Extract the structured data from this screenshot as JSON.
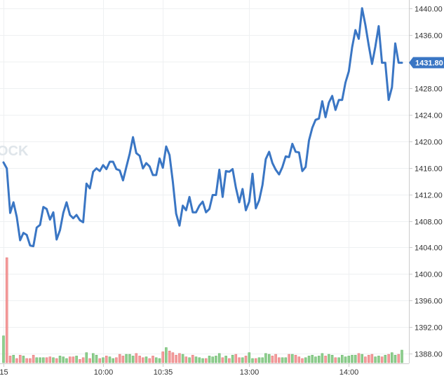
{
  "chart_data": {
    "type": "line",
    "watermark": "OCK",
    "last_price_label": "1431.80",
    "y_ticks": [
      "1440.00",
      "1436.00",
      "1432.00",
      "1428.00",
      "1424.00",
      "1420.00",
      "1416.00",
      "1412.00",
      "1408.00",
      "1404.00",
      "1400.00",
      "1396.00",
      "1392.00",
      "1388.00"
    ],
    "ylim": [
      1387.2,
      1440.6
    ],
    "x_ticks": [
      {
        "label": "15",
        "index": 0
      },
      {
        "label": "10:00",
        "index": 30
      },
      {
        "label": "10:35",
        "index": 48
      },
      {
        "label": "13:00",
        "index": 74
      },
      {
        "label": "14:00",
        "index": 104
      }
    ],
    "grid": true,
    "colors": {
      "price_line": "#3a76c4",
      "volume_up": "#8fce8f",
      "volume_down": "#f49c9c",
      "grid": "#eef0f2",
      "axis": "#cccccc",
      "price_tag": "#3a76c4"
    },
    "series": [
      {
        "values": [
          1416.8,
          1415.9,
          1409.2,
          1410.8,
          1408.6,
          1405.1,
          1406.2,
          1405.9,
          1404.3,
          1404.2,
          1407.0,
          1407.4,
          1410.1,
          1409.8,
          1408.2,
          1409.3,
          1405.2,
          1406.6,
          1409.2,
          1410.8,
          1408.9,
          1408.4,
          1408.9,
          1408.1,
          1407.8,
          1413.6,
          1412.9,
          1415.4,
          1415.9,
          1415.5,
          1416.4,
          1415.8,
          1416.9,
          1416.9,
          1415.8,
          1415.6,
          1414.1,
          1416.1,
          1418.1,
          1420.6,
          1418.2,
          1417.8,
          1415.9,
          1416.7,
          1416.2,
          1414.9,
          1414.9,
          1417.4,
          1416.0,
          1419.2,
          1417.9,
          1413.9,
          1409.1,
          1407.3,
          1410.3,
          1409.6,
          1411.6,
          1409.3,
          1409.3,
          1410.3,
          1410.9,
          1409.3,
          1409.8,
          1411.9,
          1411.9,
          1415.7,
          1411.6,
          1415.5,
          1415.4,
          1415.8,
          1413.0,
          1410.8,
          1412.8,
          1409.6,
          1410.9,
          1415.1,
          1409.9,
          1411.1,
          1413.4,
          1417.3,
          1418.4,
          1416.7,
          1415.7,
          1415.0,
          1416.1,
          1417.7,
          1417.6,
          1419.6,
          1418.4,
          1418.3,
          1415.5,
          1416.1,
          1420.1,
          1422.0,
          1423.2,
          1423.4,
          1426.0,
          1423.6,
          1425.8,
          1426.8,
          1424.7,
          1426.2,
          1426.2,
          1428.8,
          1430.5,
          1434.1,
          1436.7,
          1435.4,
          1440.0,
          1437.5,
          1434.4,
          1431.6,
          1434.2,
          1437.3,
          1431.8,
          1431.8,
          1426.2,
          1428.1,
          1434.7,
          1431.8,
          1431.8
        ],
        "volumes": [
          3.2,
          12.5,
          0.8,
          0.9,
          0.5,
          0.9,
          0.8,
          0.5,
          0.5,
          0.9,
          0.6,
          0.6,
          0.6,
          0.6,
          0.7,
          0.6,
          0.5,
          0.8,
          0.7,
          0.5,
          0.7,
          0.7,
          0.8,
          0.4,
          0.6,
          1.2,
          0.5,
          1.1,
          0.9,
          0.5,
          0.6,
          0.8,
          0.7,
          0.5,
          0.6,
          1.0,
          0.8,
          1.0,
          1.0,
          0.8,
          1.1,
          0.8,
          0.6,
          0.7,
          0.5,
          0.8,
          0.6,
          0.5,
          1.3,
          1.8,
          1.4,
          1.2,
          0.9,
          1.1,
          1.0,
          0.7,
          0.6,
          0.9,
          0.7,
          0.6,
          0.5,
          0.5,
          0.8,
          0.7,
          0.8,
          1.1,
          0.6,
          0.8,
          0.5,
          0.9,
          1.0,
          0.6,
          0.6,
          0.8,
          1.2,
          0.5,
          0.5,
          0.6,
          0.6,
          1.1,
          1.0,
          0.8,
          1.0,
          0.6,
          0.6,
          0.6,
          1.0,
          1.0,
          0.9,
          0.7,
          0.5,
          0.6,
          0.8,
          0.9,
          0.7,
          0.8,
          1.1,
          0.8,
          1.0,
          0.9,
          0.6,
          0.6,
          0.9,
          0.7,
          0.8,
          0.9,
          0.9,
          1.1,
          1.0,
          0.7,
          0.9,
          1.0,
          0.7,
          0.8,
          0.7,
          0.9,
          1.0,
          1.2,
          0.9,
          1.0,
          1.5
        ]
      }
    ]
  }
}
